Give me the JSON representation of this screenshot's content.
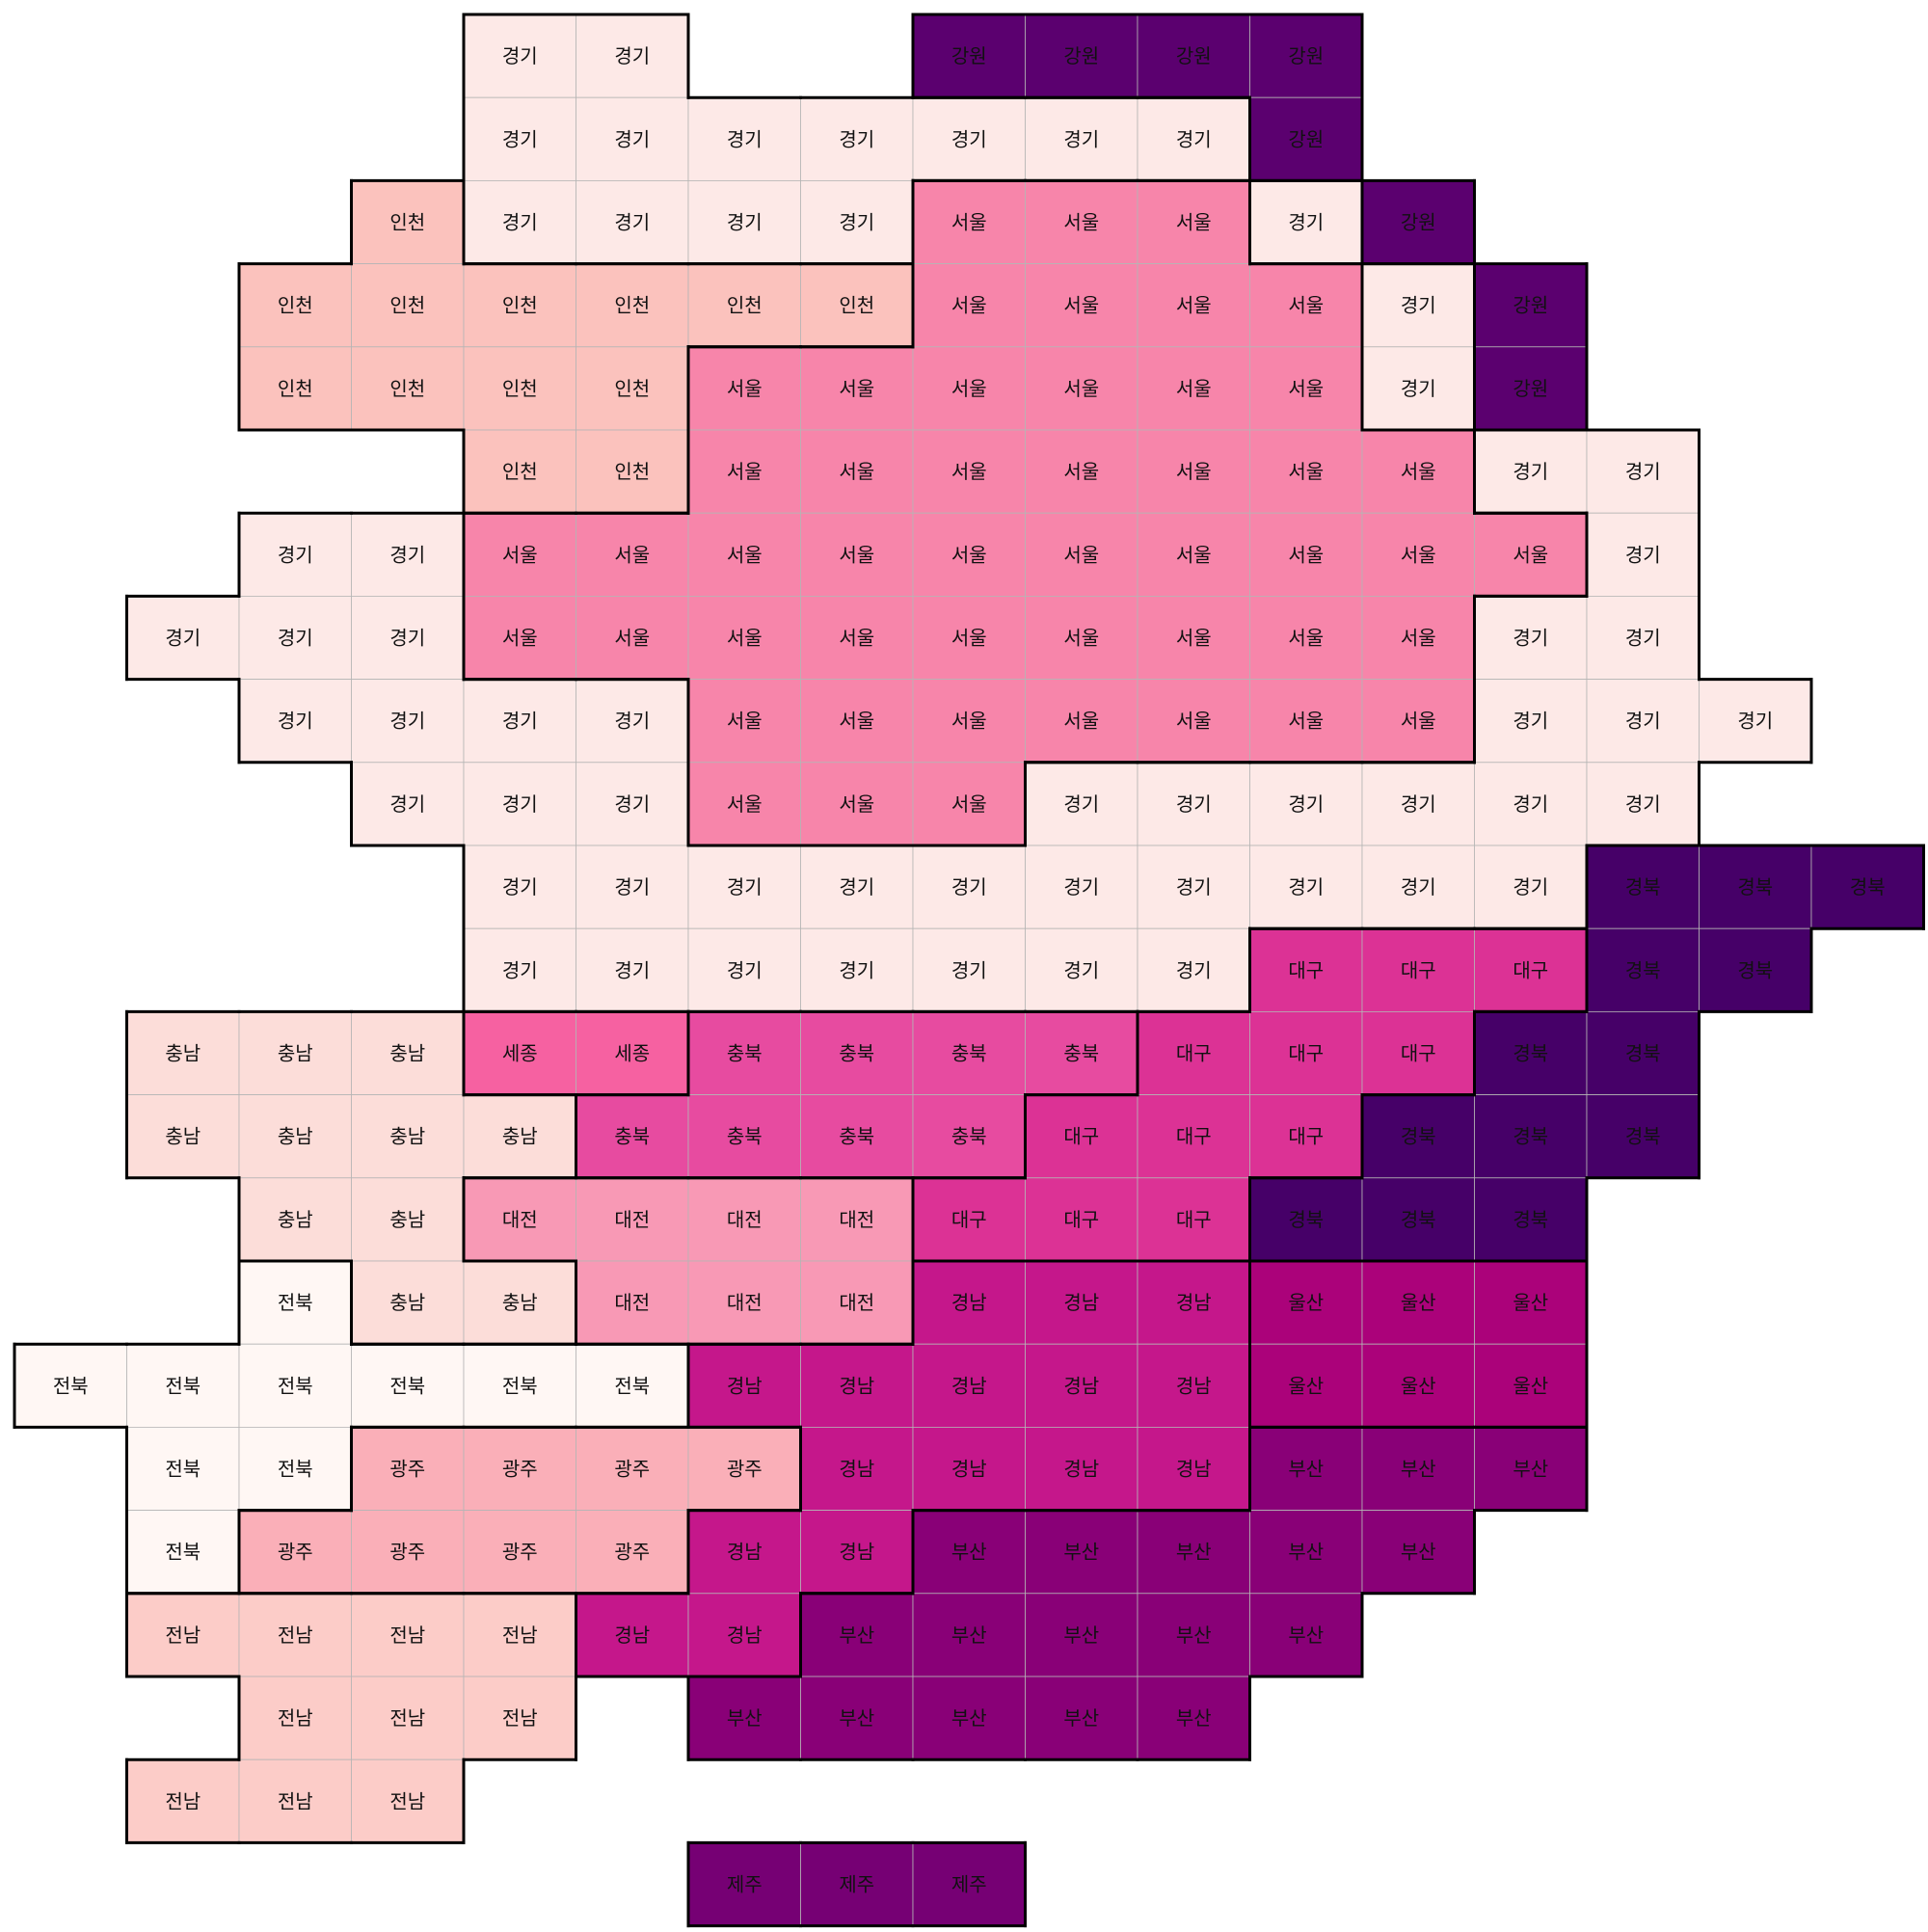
{
  "region_colors": {
    "경기": "#fde9e7",
    "강원": "#5b006f",
    "인천": "#fbc2bd",
    "서울": "#f785aa",
    "충남": "#fcddd9",
    "세종": "#f661a1",
    "충북": "#e74ba0",
    "대구": "#dc3295",
    "경북": "#460068",
    "대전": "#f899b5",
    "전북": "#fff7f4",
    "경남": "#c5178b",
    "울산": "#ab027a",
    "광주": "#faafb8",
    "부산": "#890077",
    "전남": "#fcccc8",
    "제주": "#760074"
  },
  "tile_map": {
    "rows": [
      {
        "row": 0,
        "start": 4,
        "cells": [
          "경기",
          "경기",
          null,
          null,
          "강원",
          "강원",
          "강원",
          "강원"
        ]
      },
      {
        "row": 1,
        "start": 4,
        "cells": [
          "경기",
          "경기",
          "경기",
          "경기",
          "경기",
          "경기",
          "경기",
          "강원"
        ]
      },
      {
        "row": 2,
        "start": 3,
        "cells": [
          "인천",
          "경기",
          "경기",
          "경기",
          "경기",
          "서울",
          "서울",
          "서울",
          "경기",
          "강원"
        ]
      },
      {
        "row": 3,
        "start": 2,
        "cells": [
          "인천",
          "인천",
          "인천",
          "인천",
          "인천",
          "인천",
          "서울",
          "서울",
          "서울",
          "서울",
          "경기",
          "강원"
        ]
      },
      {
        "row": 4,
        "start": 2,
        "cells": [
          "인천",
          "인천",
          "인천",
          "인천",
          "서울",
          "서울",
          "서울",
          "서울",
          "서울",
          "서울",
          "경기",
          "강원"
        ]
      },
      {
        "row": 5,
        "start": 4,
        "cells": [
          "인천",
          "인천",
          "서울",
          "서울",
          "서울",
          "서울",
          "서울",
          "서울",
          "서울",
          "경기",
          "경기"
        ]
      },
      {
        "row": 6,
        "start": 2,
        "cells": [
          "경기",
          "경기",
          "서울",
          "서울",
          "서울",
          "서울",
          "서울",
          "서울",
          "서울",
          "서울",
          "서울",
          "서울",
          "경기"
        ]
      },
      {
        "row": 7,
        "start": 1,
        "cells": [
          "경기",
          "경기",
          "경기",
          "서울",
          "서울",
          "서울",
          "서울",
          "서울",
          "서울",
          "서울",
          "서울",
          "서울",
          "경기",
          "경기"
        ]
      },
      {
        "row": 8,
        "start": 2,
        "cells": [
          "경기",
          "경기",
          "경기",
          "경기",
          "서울",
          "서울",
          "서울",
          "서울",
          "서울",
          "서울",
          "서울",
          "경기",
          "경기",
          "경기"
        ]
      },
      {
        "row": 9,
        "start": 3,
        "cells": [
          "경기",
          "경기",
          "경기",
          "서울",
          "서울",
          "서울",
          "경기",
          "경기",
          "경기",
          "경기",
          "경기",
          "경기"
        ]
      },
      {
        "row": 10,
        "start": 4,
        "cells": [
          "경기",
          "경기",
          "경기",
          "경기",
          "경기",
          "경기",
          "경기",
          "경기",
          "경기",
          "경기",
          "경북",
          "경북",
          "경북"
        ]
      },
      {
        "row": 11,
        "start": 4,
        "cells": [
          "경기",
          "경기",
          "경기",
          "경기",
          "경기",
          "경기",
          "경기",
          "대구",
          "대구",
          "대구",
          "경북",
          "경북"
        ]
      },
      {
        "row": 12,
        "start": 1,
        "cells": [
          "충남",
          "충남",
          "충남",
          "세종",
          "세종",
          "충북",
          "충북",
          "충북",
          "충북",
          "대구",
          "대구",
          "대구",
          "경북",
          "경북"
        ]
      },
      {
        "row": 13,
        "start": 1,
        "cells": [
          "충남",
          "충남",
          "충남",
          "충남",
          "충북",
          "충북",
          "충북",
          "충북",
          "대구",
          "대구",
          "대구",
          "경북",
          "경북",
          "경북"
        ]
      },
      {
        "row": 14,
        "start": 2,
        "cells": [
          "충남",
          "충남",
          "대전",
          "대전",
          "대전",
          "대전",
          "대구",
          "대구",
          "대구",
          "경북",
          "경북",
          "경북"
        ]
      },
      {
        "row": 15,
        "start": 2,
        "cells": [
          "전북",
          "충남",
          "충남",
          "대전",
          "대전",
          "대전",
          "경남",
          "경남",
          "경남",
          "울산",
          "울산",
          "울산"
        ]
      },
      {
        "row": 16,
        "start": 0,
        "cells": [
          "전북",
          "전북",
          "전북",
          "전북",
          "전북",
          "전북",
          "경남",
          "경남",
          "경남",
          "경남",
          "경남",
          "울산",
          "울산",
          "울산"
        ]
      },
      {
        "row": 17,
        "start": 1,
        "cells": [
          "전북",
          "전북",
          "광주",
          "광주",
          "광주",
          "광주",
          "경남",
          "경남",
          "경남",
          "경남",
          "부산",
          "부산",
          "부산"
        ]
      },
      {
        "row": 18,
        "start": 1,
        "cells": [
          "전북",
          "광주",
          "광주",
          "광주",
          "광주",
          "경남",
          "경남",
          "부산",
          "부산",
          "부산",
          "부산",
          "부산"
        ]
      },
      {
        "row": 19,
        "start": 1,
        "cells": [
          "전남",
          "전남",
          "전남",
          "전남",
          "경남",
          "경남",
          "부산",
          "부산",
          "부산",
          "부산",
          "부산"
        ]
      },
      {
        "row": 20,
        "start": 2,
        "cells": [
          "전남",
          "전남",
          "전남",
          null,
          "부산",
          "부산",
          "부산",
          "부산",
          "부산"
        ]
      },
      {
        "row": 21,
        "start": 1,
        "cells": [
          "전남",
          "전남",
          "전남"
        ]
      },
      {
        "row": 22,
        "start": 6,
        "cells": [
          "제주",
          "제주",
          "제주"
        ]
      }
    ]
  }
}
